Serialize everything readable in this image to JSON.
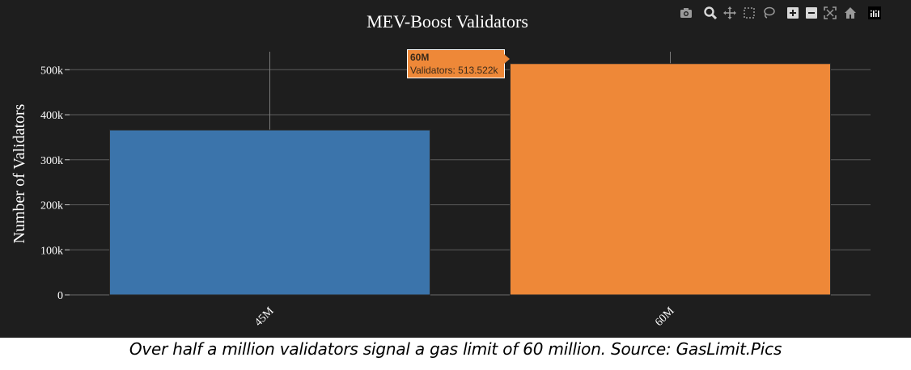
{
  "chart_data": {
    "type": "bar",
    "title": "MEV-Boost Validators",
    "xlabel": "",
    "ylabel": "Number of Validators",
    "categories": [
      "45M",
      "60M"
    ],
    "values": [
      366000,
      513522
    ],
    "colors": [
      "#3b74ab",
      "#ee8838"
    ],
    "ylim": [
      0,
      540000
    ],
    "yticks": [
      0,
      100000,
      200000,
      300000,
      400000,
      500000
    ],
    "ytick_labels": [
      "0",
      "100k",
      "200k",
      "300k",
      "400k",
      "500k"
    ],
    "grid": true,
    "legend": "none",
    "background": "#1e1e1e"
  },
  "hover": {
    "category": "60M",
    "text": "Validators: 513.522k"
  },
  "modebar": {
    "icons": [
      "camera-icon",
      "zoom-icon",
      "pan-icon",
      "box-select-icon",
      "lasso-icon",
      "zoom-in-icon",
      "zoom-out-icon",
      "autoscale-icon",
      "reset-axes-icon",
      "plotly-logo-icon"
    ]
  },
  "caption": "Over half a million validators signal a gas limit of 60 million. Source: GasLimit.Pics"
}
